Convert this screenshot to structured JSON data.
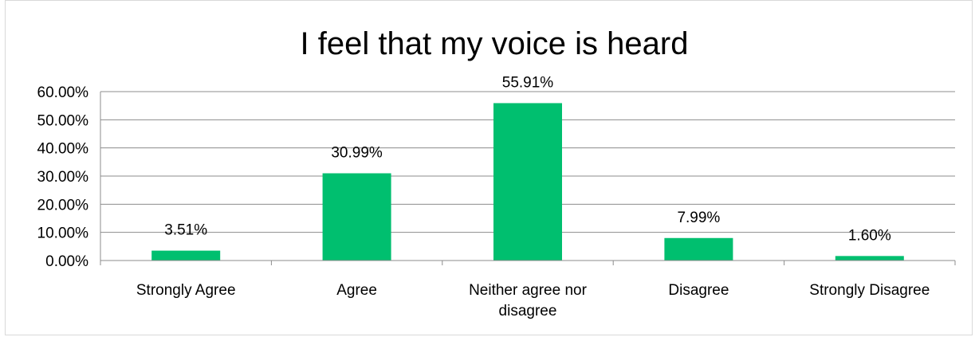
{
  "chart_data": {
    "type": "bar",
    "title": "I feel that my voice is heard",
    "xlabel": "",
    "ylabel": "",
    "categories": [
      [
        "Strongly Agree"
      ],
      [
        "Agree"
      ],
      [
        "Neither agree nor",
        "disagree"
      ],
      [
        "Disagree"
      ],
      [
        "Strongly Disagree"
      ]
    ],
    "values": [
      3.51,
      30.99,
      55.91,
      7.99,
      1.6
    ],
    "data_labels": [
      "3.51%",
      "30.99%",
      "55.91%",
      "7.99%",
      "1.60%"
    ],
    "ylim": [
      0,
      60
    ],
    "yticks": [
      0,
      10,
      20,
      30,
      40,
      50,
      60
    ],
    "ytick_labels": [
      "0.00%",
      "10.00%",
      "20.00%",
      "30.00%",
      "40.00%",
      "50.00%",
      "60.00%"
    ],
    "grid": true,
    "legend": "none",
    "bar_color": "#00bf6f",
    "grid_color": "#8c8c8c"
  }
}
